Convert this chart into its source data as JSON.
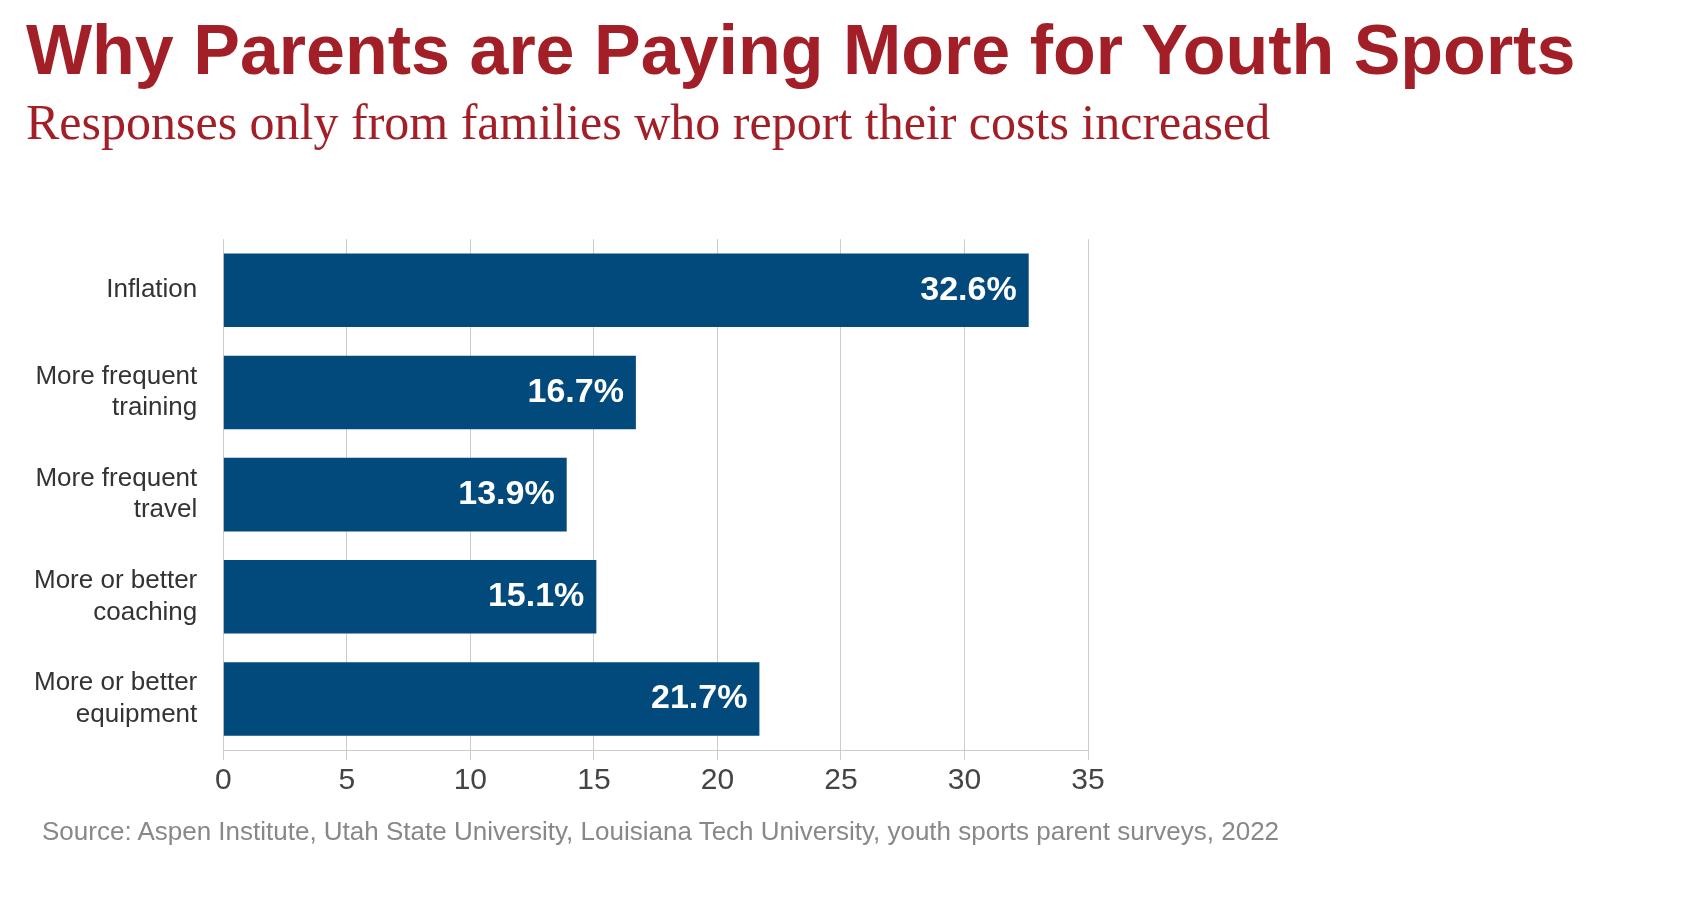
{
  "chart_data": {
    "type": "bar",
    "orientation": "horizontal",
    "title": "Why Parents are Paying More for Youth Sports",
    "subtitle": "Responses only from families who report their costs increased",
    "categories": [
      "Inflation",
      "More frequent training",
      "More frequent travel",
      "More or better coaching",
      "More or better equipment"
    ],
    "values": [
      32.6,
      16.7,
      13.9,
      15.1,
      21.7
    ],
    "value_labels": [
      "32.6%",
      "16.7%",
      "13.9%",
      "15.1%",
      "21.7%"
    ],
    "color": "#034a7c",
    "xlim": [
      0,
      35
    ],
    "xticks": [
      0,
      5,
      10,
      15,
      20,
      25,
      30,
      35
    ],
    "grid": "x",
    "legend": false,
    "annotations": [
      "Source: Aspen Institute, Utah State University, Louisiana Tech University, youth sports parent surveys, 2022"
    ]
  }
}
